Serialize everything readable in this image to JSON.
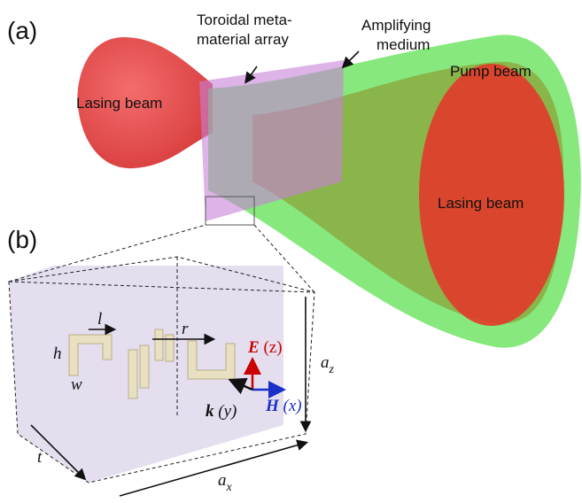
{
  "panel_a": {
    "label": "(a)",
    "annotations": {
      "metamaterial": [
        "Toroidal meta-",
        "material array"
      ],
      "medium": [
        "Amplifying",
        "medium"
      ],
      "pump": "Pump beam",
      "lasing_left": "Lasing beam",
      "lasing_right": "Lasing beam"
    }
  },
  "panel_b": {
    "label": "(b)",
    "dimensions": {
      "l": "l",
      "h": "h",
      "w": "w",
      "r": "r",
      "t": "t",
      "az": {
        "symbol": "a",
        "subscript": "z"
      },
      "ax": {
        "symbol": "a",
        "subscript": "x"
      }
    },
    "fields": {
      "E": {
        "symbol": "E",
        "axis": "(z)"
      },
      "H": {
        "symbol": "H",
        "axis": "(x)"
      },
      "k": {
        "symbol": "k",
        "axis": "(y)"
      }
    }
  }
}
